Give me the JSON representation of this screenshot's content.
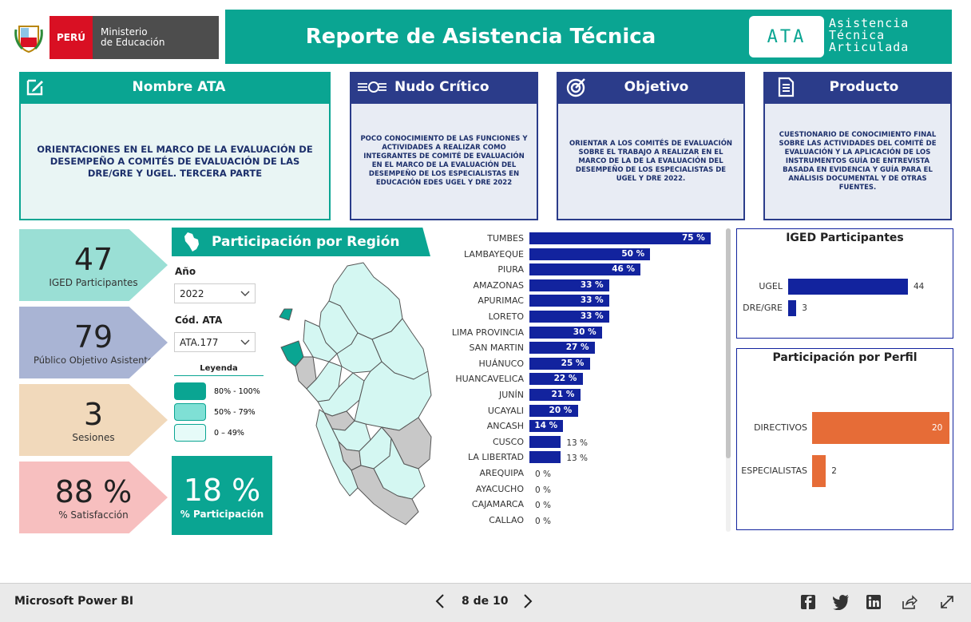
{
  "header": {
    "country": "PERÚ",
    "ministry_line1": "Ministerio",
    "ministry_line2": "de Educación",
    "title": "Reporte de Asistencia Técnica",
    "ata_badge": "ATA",
    "ata_words": [
      "Asistencia",
      "Técnica",
      "Articulada"
    ]
  },
  "cards": {
    "nombre": {
      "title": "Nombre ATA",
      "body": "ORIENTACIONES EN EL MARCO DE LA EVALUACIÓN DE DESEMPEÑO A COMITÉS DE EVALUACIÓN DE LAS DRE/GRE Y UGEL. TERCERA PARTE"
    },
    "nudo": {
      "title": "Nudo Crítico",
      "body": "POCO CONOCIMIENTO DE LAS FUNCIONES Y ACTIVIDADES A REALIZAR COMO INTEGRANTES DE COMITÉ DE EVALUACIÓN EN EL MARCO DE LA EVALUACIÓN DEL DESEMPEÑO DE LOS ESPECIALISTAS EN EDUCACIÓN EDES UGEL Y DRE 2022"
    },
    "objetivo": {
      "title": "Objetivo",
      "body": "ORIENTAR A LOS COMITÉS DE EVALUACIÓN SOBRE EL TRABAJO A REALIZAR EN EL MARCO DE LA DE LA EVALUACIÓN DEL DESEMPEÑO DE LOS ESPECIALISTAS DE UGEL Y DRE 2022."
    },
    "producto": {
      "title": "Producto",
      "body": "CUESTIONARIO DE CONOCIMIENTO FINAL SOBRE LAS ACTIVIDADES DEL COMITÉ DE EVALUACIÓN Y LA APLICACIÓN DE LOS INSTRUMENTOS GUÍA DE ENTREVISTA BASADA EN EVIDENCIA Y GUÍA PARA EL ANÁLISIS DOCUMENTAL Y DE OTRAS FUENTES."
    }
  },
  "kpis": [
    {
      "value": "47",
      "label": "IGED Participantes",
      "color": "#9adfd5"
    },
    {
      "value": "79",
      "label": "Público Objetivo Asistente",
      "color": "#a9b4d4"
    },
    {
      "value": "3",
      "label": "Sesiones",
      "color": "#f1d9bb"
    },
    {
      "value": "88 %",
      "label": "% Satisfacción",
      "color": "#f7bfbf"
    }
  ],
  "region": {
    "title": "Participación por Región",
    "anio_label": "Año",
    "anio_value": "2022",
    "cod_label": "Cód. ATA",
    "cod_value": "ATA.177",
    "legend_title": "Leyenda",
    "legend": [
      {
        "label": "80% - 100%",
        "color": "#0aa592"
      },
      {
        "label": "50% - 79%",
        "color": "#7fe0d5"
      },
      {
        "label": "0 – 49%",
        "color": "#e6fbf8"
      }
    ],
    "participacion_value": "18 %",
    "participacion_label": "% Participación"
  },
  "chart_data": [
    {
      "type": "bar",
      "orientation": "horizontal",
      "categories": [
        "TUMBES",
        "LAMBAYEQUE",
        "PIURA",
        "AMAZONAS",
        "APURIMAC",
        "LORETO",
        "LIMA PROVINCIA",
        "SAN MARTIN",
        "HUÁNUCO",
        "HUANCAVELICA",
        "JUNÍN",
        "UCAYALI",
        "ANCASH",
        "CUSCO",
        "LA LIBERTAD",
        "AREQUIPA",
        "AYACUCHO",
        "CAJAMARCA",
        "CALLAO"
      ],
      "values": [
        75,
        50,
        46,
        33,
        33,
        33,
        30,
        27,
        25,
        22,
        21,
        20,
        14,
        13,
        13,
        0,
        0,
        0,
        0
      ],
      "labels": [
        "75 %",
        "50 %",
        "46 %",
        "33 %",
        "33 %",
        "33 %",
        "30 %",
        "27 %",
        "25 %",
        "22 %",
        "21 %",
        "20 %",
        "14 %",
        "13 %",
        "13 %",
        "0 %",
        "0 %",
        "0 %",
        "0 %"
      ],
      "xlim": [
        0,
        75
      ],
      "color": "#12239e"
    },
    {
      "type": "bar",
      "orientation": "horizontal",
      "title": "IGED Participantes",
      "categories": [
        "UGEL",
        "DRE/GRE"
      ],
      "values": [
        44,
        3
      ],
      "xlim": [
        0,
        44
      ],
      "color": "#12239e"
    },
    {
      "type": "bar",
      "orientation": "horizontal",
      "title": "Participación por Perfil",
      "categories": [
        "DIRECTIVOS",
        "ESPECIALISTAS"
      ],
      "values": [
        20,
        2
      ],
      "xlim": [
        0,
        20
      ],
      "color": "#e66c37"
    }
  ],
  "footer": {
    "app": "Microsoft Power BI",
    "page": "8 de 10",
    "prev_icon": "chevron-left-icon",
    "next_icon": "chevron-right-icon",
    "social": [
      "facebook-icon",
      "twitter-icon",
      "linkedin-icon",
      "share-icon",
      "expand-icon"
    ]
  }
}
